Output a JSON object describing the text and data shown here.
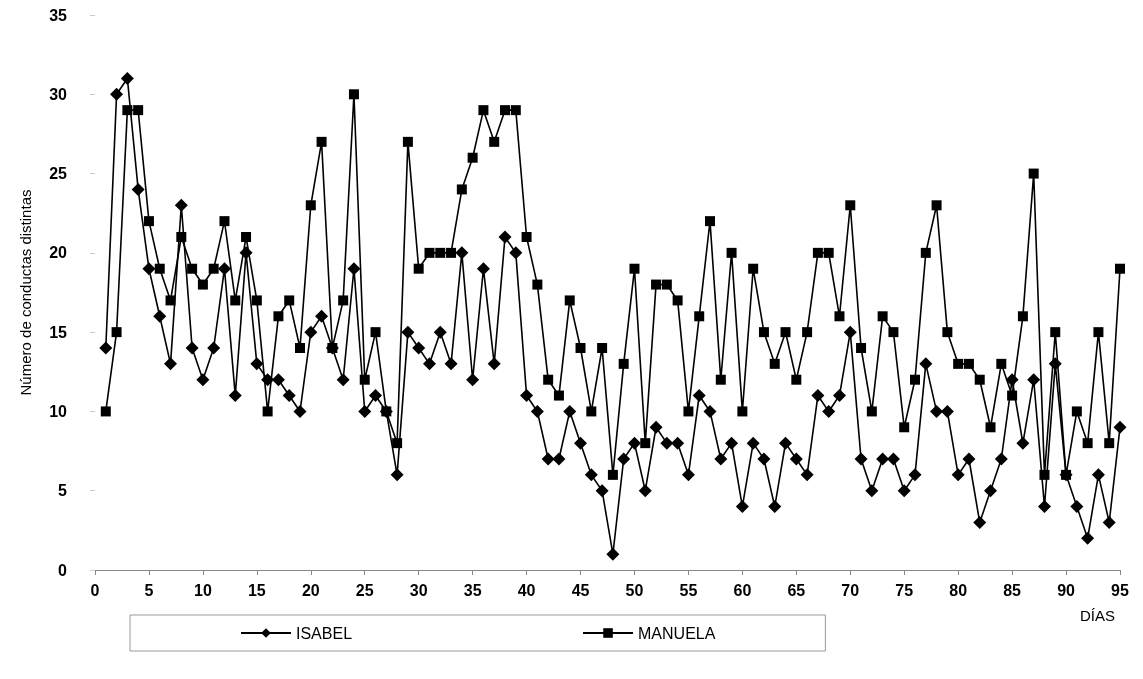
{
  "chart_data": {
    "type": "line",
    "xlabel": "DÍAS",
    "ylabel": "Número de conductas distintas",
    "x": [
      1,
      2,
      3,
      4,
      5,
      6,
      7,
      8,
      9,
      10,
      11,
      12,
      13,
      14,
      15,
      16,
      17,
      18,
      19,
      20,
      21,
      22,
      23,
      24,
      25,
      26,
      27,
      28,
      29,
      30,
      31,
      32,
      33,
      34,
      35,
      36,
      37,
      38,
      39,
      40,
      41,
      42,
      43,
      44,
      45,
      46,
      47,
      48,
      49,
      50,
      51,
      52,
      53,
      54,
      55,
      56,
      57,
      58,
      59,
      60,
      61,
      62,
      63,
      64,
      65,
      66,
      67,
      68,
      69,
      70,
      71,
      72,
      73,
      74,
      75,
      76,
      77,
      78,
      79,
      80,
      81,
      82,
      83,
      84,
      85,
      86,
      87,
      88,
      89,
      90,
      91,
      92,
      93,
      94,
      95
    ],
    "series": [
      {
        "name": "ISABEL",
        "color": "#000000",
        "marker": "diamond",
        "values": [
          14,
          30,
          31,
          24,
          19,
          16,
          13,
          23,
          14,
          12,
          14,
          19,
          11,
          20,
          13,
          12,
          12,
          11,
          10,
          15,
          16,
          14,
          12,
          19,
          10,
          11,
          10,
          6,
          15,
          14,
          13,
          15,
          13,
          20,
          12,
          19,
          13,
          21,
          20,
          11,
          10,
          7,
          7,
          10,
          8,
          6,
          5,
          1,
          7,
          8,
          5,
          9,
          8,
          8,
          6,
          11,
          10,
          7,
          8,
          4,
          8,
          7,
          4,
          8,
          7,
          6,
          11,
          10,
          11,
          15,
          7,
          5,
          7,
          7,
          5,
          6,
          13,
          10,
          10,
          6,
          7,
          3,
          5,
          7,
          12,
          8,
          12,
          4,
          13,
          6,
          4,
          2,
          6,
          3,
          9
        ]
      },
      {
        "name": "MANUELA",
        "color": "#000000",
        "marker": "square",
        "values": [
          10,
          15,
          29,
          29,
          22,
          19,
          17,
          21,
          19,
          18,
          19,
          22,
          17,
          21,
          17,
          10,
          16,
          17,
          14,
          23,
          27,
          14,
          17,
          30,
          12,
          15,
          10,
          8,
          27,
          19,
          20,
          20,
          20,
          24,
          26,
          29,
          27,
          29,
          29,
          21,
          18,
          12,
          11,
          17,
          14,
          10,
          14,
          6,
          13,
          19,
          8,
          18,
          18,
          17,
          10,
          16,
          22,
          12,
          20,
          10,
          19,
          15,
          13,
          15,
          12,
          15,
          20,
          20,
          16,
          23,
          14,
          10,
          16,
          15,
          9,
          12,
          20,
          23,
          15,
          13,
          13,
          12,
          9,
          13,
          11,
          16,
          25,
          6,
          15,
          6,
          10,
          8,
          15,
          8,
          19
        ]
      }
    ],
    "xlim": [
      0,
      95
    ],
    "xticks": [
      0,
      5,
      10,
      15,
      20,
      25,
      30,
      35,
      40,
      45,
      50,
      55,
      60,
      65,
      70,
      75,
      80,
      85,
      90,
      95
    ],
    "ylim": [
      0,
      35
    ],
    "yticks": [
      0,
      5,
      10,
      15,
      20,
      25,
      30,
      35
    ],
    "legend": "bottom",
    "line_style": "solid"
  }
}
